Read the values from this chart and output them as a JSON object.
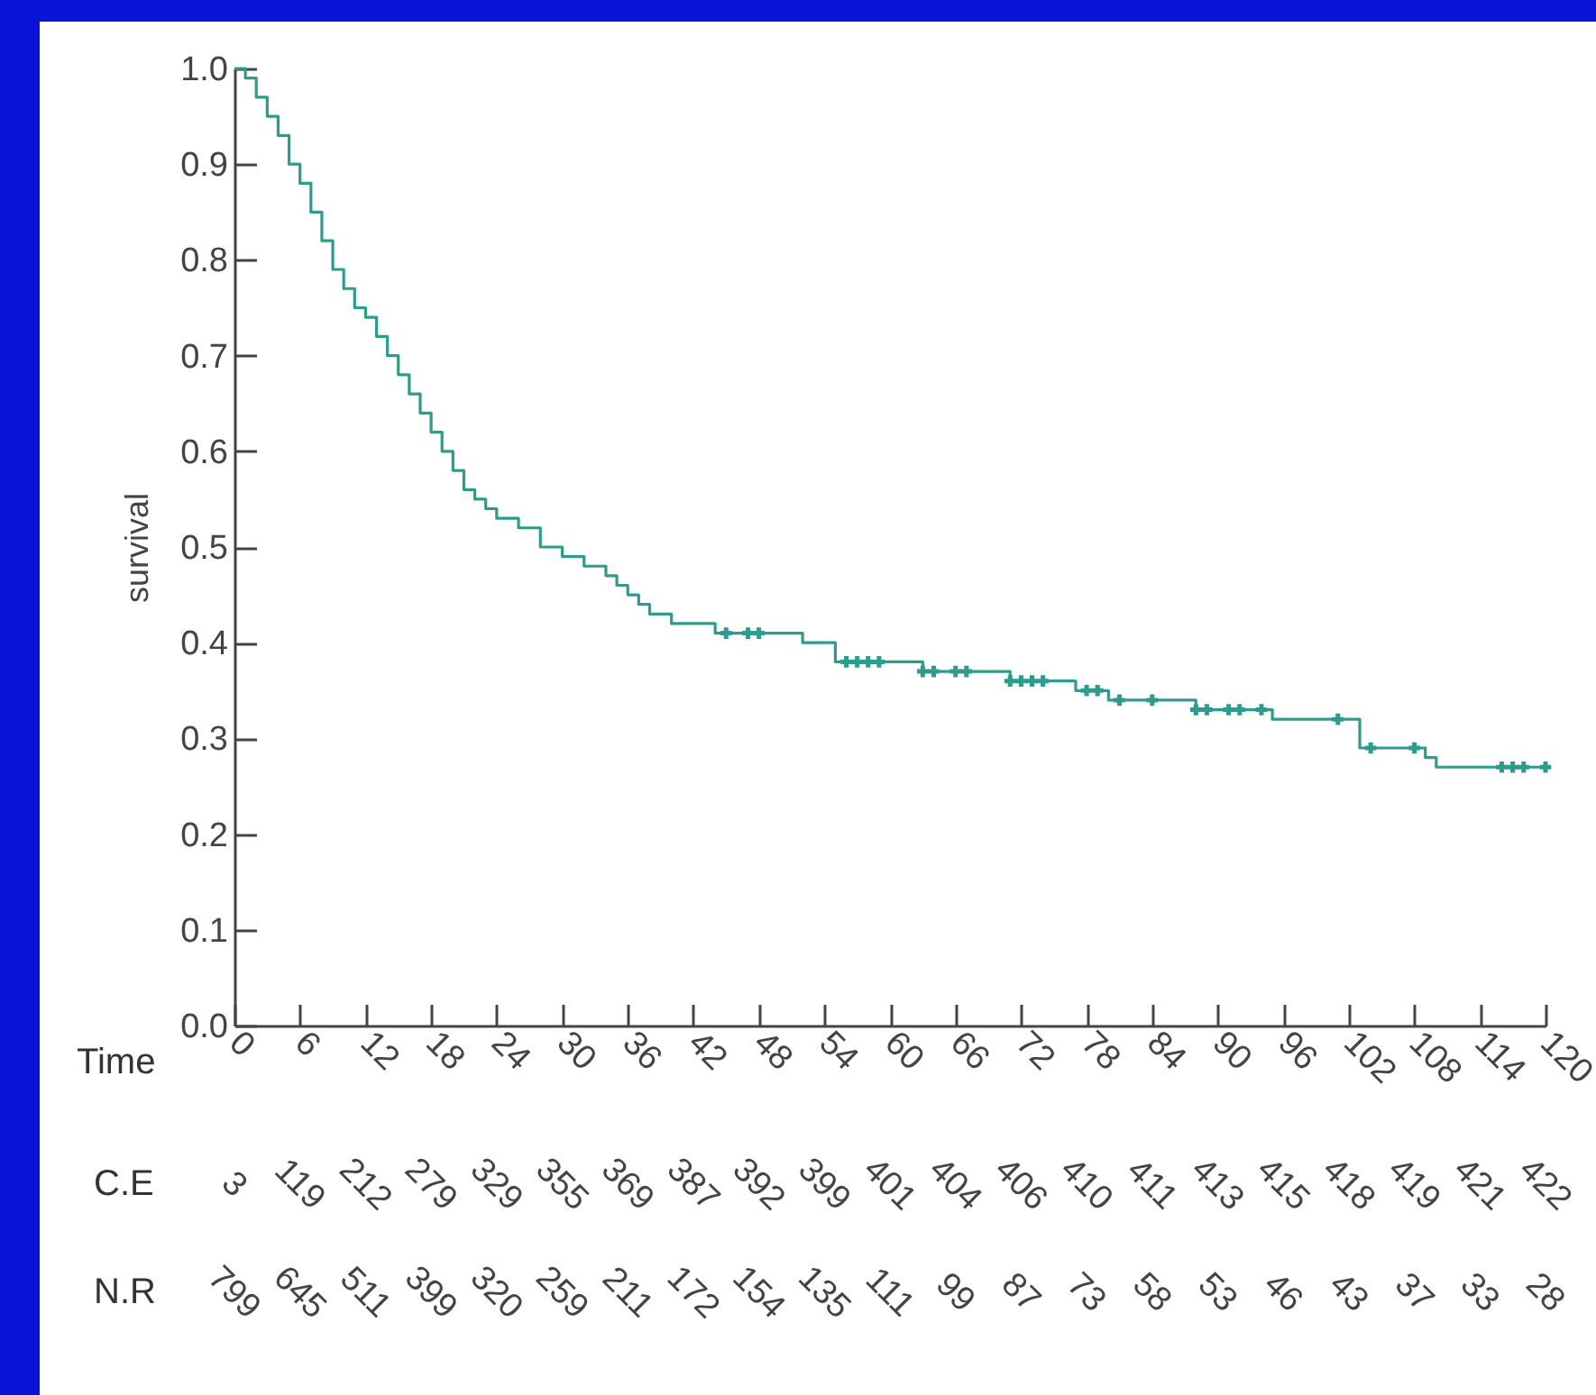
{
  "chart_data": {
    "type": "step",
    "xlabel": "Time",
    "ylabel": "survival",
    "xlim": [
      0,
      120
    ],
    "xticks": [
      0,
      6,
      12,
      18,
      24,
      30,
      36,
      42,
      48,
      54,
      60,
      66,
      72,
      78,
      84,
      90,
      96,
      102,
      108,
      114,
      120
    ],
    "ylim": [
      0,
      1
    ],
    "yticks": [
      {
        "value": 0,
        "label": "0.0"
      },
      0.1,
      0.2,
      0.3,
      0.4,
      0.5,
      0.6,
      0.7,
      0.8,
      0.9,
      {
        "value": 1,
        "label": "1.0"
      }
    ],
    "series": [
      {
        "color": "#2e9c8c",
        "x": [
          0,
          1,
          2,
          3,
          4,
          5,
          6,
          7,
          8,
          9,
          10,
          11,
          12,
          13,
          14,
          15,
          16,
          17,
          18,
          19,
          20,
          21,
          22,
          23,
          24,
          26,
          28,
          30,
          32,
          34,
          35,
          36,
          37,
          38,
          40,
          42,
          44,
          49,
          52,
          55,
          61,
          63,
          69,
          71,
          77,
          80,
          87,
          88,
          95,
          96,
          103,
          104,
          109,
          110,
          120
        ],
        "values": [
          1.0,
          0.99,
          0.97,
          0.95,
          0.93,
          0.9,
          0.88,
          0.85,
          0.82,
          0.79,
          0.77,
          0.75,
          0.74,
          0.72,
          0.7,
          0.68,
          0.66,
          0.64,
          0.62,
          0.6,
          0.58,
          0.56,
          0.55,
          0.54,
          0.53,
          0.52,
          0.5,
          0.49,
          0.48,
          0.47,
          0.46,
          0.45,
          0.44,
          0.43,
          0.42,
          0.42,
          0.41,
          0.41,
          0.4,
          0.38,
          0.38,
          0.37,
          0.37,
          0.36,
          0.35,
          0.34,
          0.34,
          0.33,
          0.32,
          0.32,
          0.29,
          0.29,
          0.28,
          0.27,
          0.27
        ]
      },
      {
        "type": "scatter",
        "color": "#2e9c8c",
        "marker": "cross",
        "x": [
          45,
          47,
          48,
          56,
          57,
          58,
          59,
          63,
          64,
          66,
          67,
          71,
          72,
          73,
          74,
          78,
          79,
          81,
          84,
          88,
          89,
          91,
          92,
          94,
          101,
          104,
          108,
          116,
          117,
          118,
          120
        ],
        "values": [
          0.41,
          0.41,
          0.41,
          0.38,
          0.38,
          0.38,
          0.38,
          0.37,
          0.37,
          0.37,
          0.37,
          0.36,
          0.36,
          0.36,
          0.36,
          0.35,
          0.35,
          0.34,
          0.34,
          0.33,
          0.33,
          0.33,
          0.33,
          0.33,
          0.32,
          0.29,
          0.29,
          0.27,
          0.27,
          0.27,
          0.27
        ]
      }
    ],
    "annotations": [
      "C.E",
      "3",
      "119",
      "212",
      "279",
      "329",
      "355",
      "369",
      "387",
      "392",
      "399",
      "401",
      "404",
      "406",
      "410",
      "411",
      "413",
      "415",
      "418",
      "419",
      "421",
      "422",
      "N.R",
      "799",
      "645",
      "511",
      "399",
      "320",
      "259",
      "211",
      "172",
      "154",
      "135",
      "111",
      "99",
      "87",
      "73",
      "58",
      "53",
      "46",
      "43",
      "37",
      "33",
      "28"
    ]
  }
}
